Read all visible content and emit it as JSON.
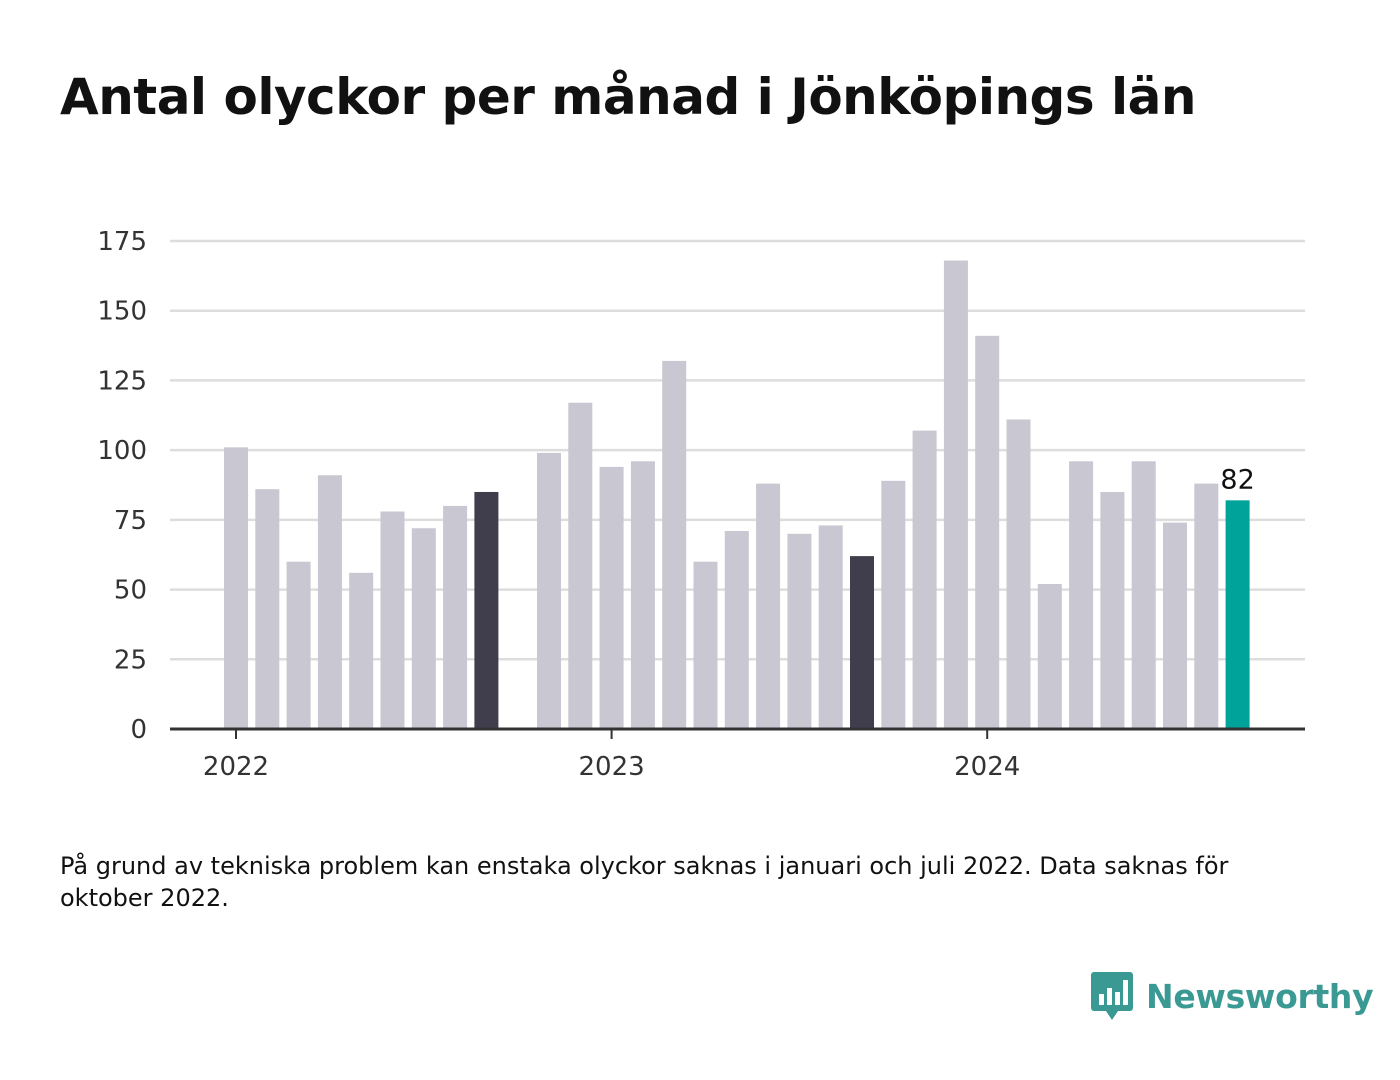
{
  "title": "Antal olyckor per månad i Jönköpings län",
  "note": "På grund av tekniska problem kan enstaka olyckor saknas i januari och juli 2022. Data saknas för oktober 2022.",
  "brand": {
    "name": "Newsworthy",
    "icon": "newsworthy-logo-icon",
    "color": "#3a9a93"
  },
  "colors": {
    "bar": "#c8c7d2",
    "highlight": "#403e4c",
    "latest": "#00a39a",
    "grid": "#dddddd",
    "axis": "#333333"
  },
  "chart_data": {
    "type": "bar",
    "title": "Antal olyckor per månad i Jönköpings län",
    "xlabel": "",
    "ylabel": "",
    "ylim": [
      0,
      175
    ],
    "yticks": [
      0,
      25,
      50,
      75,
      100,
      125,
      150,
      175
    ],
    "year_ticks": [
      {
        "label": "2022",
        "index": 0
      },
      {
        "label": "2023",
        "index": 12
      },
      {
        "label": "2024",
        "index": 24
      }
    ],
    "grid": true,
    "months": [
      "2022-01",
      "2022-02",
      "2022-03",
      "2022-04",
      "2022-05",
      "2022-06",
      "2022-07",
      "2022-08",
      "2022-09",
      "2022-10",
      "2022-11",
      "2022-12",
      "2023-01",
      "2023-02",
      "2023-03",
      "2023-04",
      "2023-05",
      "2023-06",
      "2023-07",
      "2023-08",
      "2023-09",
      "2023-10",
      "2023-11",
      "2023-12",
      "2024-01",
      "2024-02",
      "2024-03",
      "2024-04",
      "2024-05",
      "2024-06",
      "2024-07",
      "2024-08",
      "2024-09"
    ],
    "values": [
      101,
      86,
      60,
      91,
      56,
      78,
      72,
      80,
      85,
      null,
      99,
      117,
      94,
      96,
      132,
      60,
      71,
      88,
      70,
      73,
      62,
      89,
      107,
      168,
      141,
      111,
      52,
      96,
      85,
      96,
      74,
      88,
      82
    ],
    "highlight_months": [
      "2022-09",
      "2023-09"
    ],
    "latest_month": "2024-09",
    "latest_label": "82"
  }
}
